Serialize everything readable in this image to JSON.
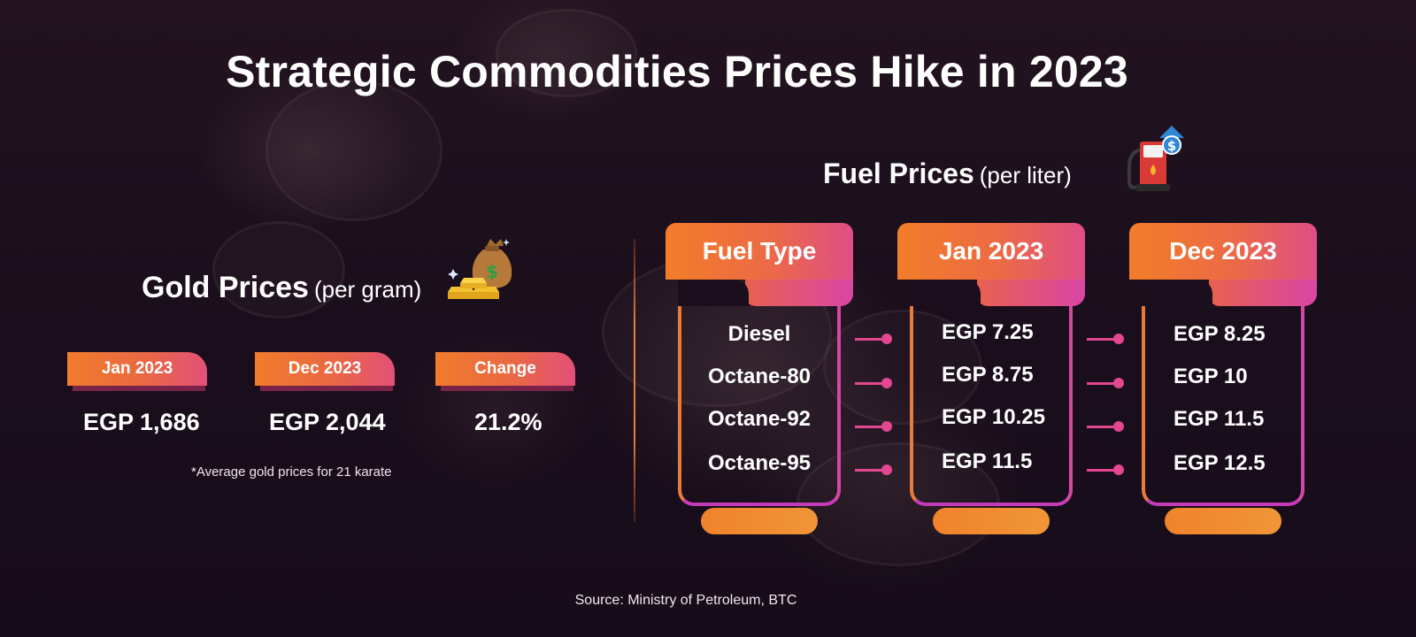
{
  "title": "Strategic Commodities Prices Hike in 2023",
  "gold": {
    "title": "Gold Prices",
    "subtitle": "(per gram)",
    "columns": [
      {
        "label": "Jan 2023",
        "value": "EGP 1,686"
      },
      {
        "label": "Dec 2023",
        "value": "EGP 2,044"
      },
      {
        "label": "Change",
        "value": "21.2%"
      }
    ],
    "note": "*Average gold prices for 21 karate",
    "icon": "gold-bars-money-bag-icon"
  },
  "fuel": {
    "title": "Fuel Prices",
    "subtitle": "(per liter)",
    "icon": "fuel-pump-price-up-icon",
    "columns": [
      {
        "header": "Fuel Type",
        "rows": [
          "Diesel",
          "Octane-80",
          "Octane-92",
          "Octane-95"
        ]
      },
      {
        "header": "Jan 2023",
        "rows": [
          "EGP 7.25",
          "EGP 8.75",
          "EGP 10.25",
          "EGP 11.5"
        ]
      },
      {
        "header": "Dec 2023",
        "rows": [
          "EGP 8.25",
          "EGP 10",
          "EGP 11.5",
          "EGP 12.5"
        ]
      }
    ]
  },
  "source": "Source: Ministry of Petroleum, BTC",
  "colors": {
    "background": "#1b0f1e",
    "orange": "#f27d29",
    "magenta": "#df4e86",
    "connector": "#e2478f"
  }
}
